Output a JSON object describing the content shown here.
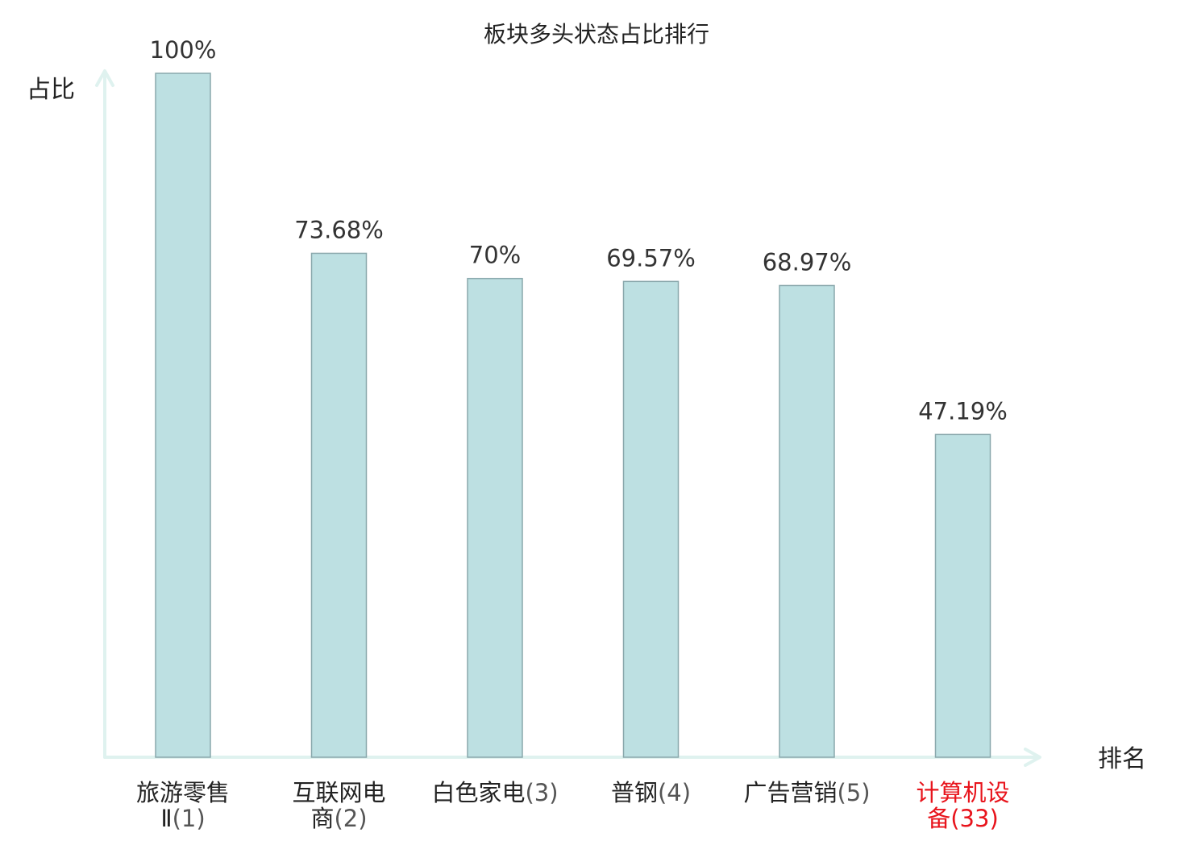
{
  "chart_data": {
    "type": "bar",
    "title": "板块多头状态占比排行",
    "ylabel": "占比",
    "xlabel": "排名",
    "ylim": [
      0,
      100
    ],
    "grid": false,
    "categories": [
      {
        "name_lines": [
          "旅游零售",
          "Ⅱ"
        ],
        "rank": "(1)",
        "highlight": false
      },
      {
        "name_lines": [
          "互联网电",
          "商"
        ],
        "rank": "(2)",
        "highlight": false
      },
      {
        "name_lines": [
          "白色家电"
        ],
        "rank": "(3)",
        "highlight": false
      },
      {
        "name_lines": [
          "普钢"
        ],
        "rank": "(4)",
        "highlight": false
      },
      {
        "name_lines": [
          "广告营销"
        ],
        "rank": "(5)",
        "highlight": false
      },
      {
        "name_lines": [
          "计算机设",
          "备"
        ],
        "rank": "(33)",
        "highlight": true
      }
    ],
    "values": [
      100,
      73.68,
      70,
      69.57,
      68.97,
      47.19
    ],
    "value_labels": [
      "100%",
      "73.68%",
      "70%",
      "69.57%",
      "68.97%",
      "47.19%"
    ]
  },
  "colors": {
    "bar_fill": "#bde0e2",
    "bar_stroke": "#8aa8ac",
    "axis": "#dff2ef",
    "text": "#222222",
    "value_text": "#333333",
    "rank_text": "#555555",
    "highlight": "#e8141c"
  }
}
